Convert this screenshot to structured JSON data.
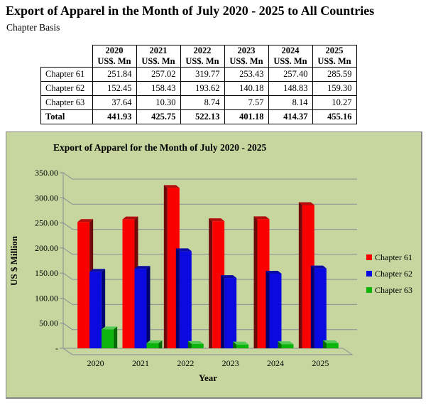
{
  "page": {
    "title": "Export of Apparel in the Month of July 2020 - 2025 to All Countries",
    "subtitle": "Chapter Basis"
  },
  "table": {
    "columns": [
      {
        "year": "2020",
        "unit": "US$. Mn"
      },
      {
        "year": "2021",
        "unit": "US$. Mn"
      },
      {
        "year": "2022",
        "unit": "US$. Mn"
      },
      {
        "year": "2023",
        "unit": "US$. Mn"
      },
      {
        "year": "2024",
        "unit": "US$. Mn"
      },
      {
        "year": "2025",
        "unit": "US$. Mn"
      }
    ],
    "rows": [
      {
        "label": "Chapter 61",
        "values": [
          "251.84",
          "257.02",
          "319.77",
          "253.43",
          "257.40",
          "285.59"
        ]
      },
      {
        "label": "Chapter 62",
        "values": [
          "152.45",
          "158.43",
          "193.62",
          "140.18",
          "148.83",
          "159.30"
        ]
      },
      {
        "label": "Chapter 63",
        "values": [
          "37.64",
          "10.30",
          "8.74",
          "7.57",
          "8.14",
          "10.27"
        ]
      }
    ],
    "total": {
      "label": "Total",
      "values": [
        "441.93",
        "425.75",
        "522.13",
        "401.18",
        "414.37",
        "455.16"
      ]
    }
  },
  "chart_data": {
    "type": "bar",
    "title": "Export of Apparel for the Month of July 2020 - 2025",
    "xlabel": "Year",
    "ylabel": "US $ Million",
    "categories": [
      "2020",
      "2021",
      "2022",
      "2023",
      "2024",
      "2025"
    ],
    "series": [
      {
        "name": "Chapter 61",
        "color": "#fb0000",
        "side_color": "#6e0a0a",
        "top_color": "#b40e0e",
        "values": [
          251.84,
          257.02,
          319.77,
          253.43,
          257.4,
          285.59
        ]
      },
      {
        "name": "Chapter 62",
        "color": "#0a0ae0",
        "side_color": "#00006e",
        "top_color": "#0b0ba4",
        "values": [
          152.45,
          158.43,
          193.62,
          140.18,
          148.83,
          159.3
        ]
      },
      {
        "name": "Chapter 63",
        "color": "#0cb50c",
        "side_color": "#066b06",
        "top_color": "#55c955",
        "values": [
          37.64,
          10.3,
          8.74,
          7.57,
          8.14,
          10.27
        ]
      }
    ],
    "ylim": [
      0,
      350
    ],
    "ytick_step": 50,
    "ytick_labels": [
      "350.00",
      "300.00",
      "250.00",
      "200.00",
      "150.00",
      "100.00",
      "50.00",
      "-"
    ],
    "grid": true,
    "legend_position": "right",
    "background": "#c6d69e",
    "gridline_color": "#8b8b96",
    "style": "3d-column"
  }
}
